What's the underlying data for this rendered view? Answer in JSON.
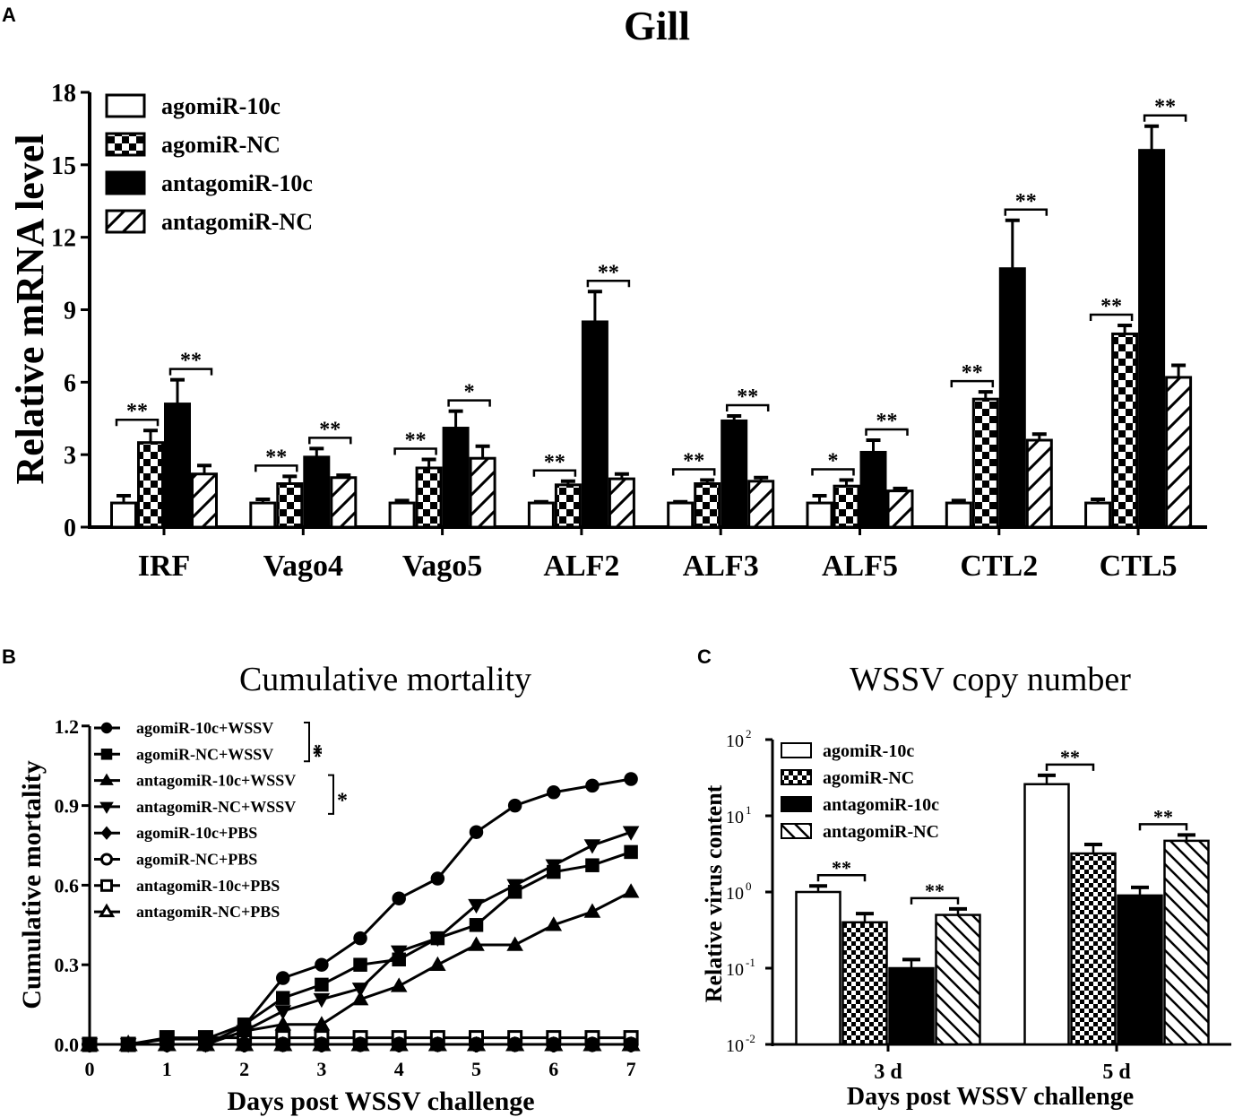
{
  "panel_letters": [
    "A",
    "B",
    "C"
  ],
  "chart_data": [
    {
      "type": "bar",
      "title": "Gill",
      "xlabel": "",
      "ylabel": "Relative mRNA level",
      "ylim": [
        0,
        18
      ],
      "yticks": [
        "0",
        "3",
        "6",
        "9",
        "12",
        "15",
        "18"
      ],
      "categories": [
        "IRF",
        "Vago4",
        "Vago5",
        "ALF2",
        "ALF3",
        "ALF5",
        "CTL2",
        "CTL5"
      ],
      "legend_position": "top-left",
      "series": [
        {
          "name": "agomiR-10c",
          "pattern": "white",
          "values": [
            1.0,
            1.0,
            1.0,
            1.0,
            1.0,
            1.0,
            1.0,
            1.0
          ],
          "errors": [
            0.3,
            0.15,
            0.1,
            0.05,
            0.05,
            0.3,
            0.1,
            0.15
          ]
        },
        {
          "name": "agomiR-NC",
          "pattern": "checker",
          "values": [
            3.5,
            1.8,
            2.45,
            1.75,
            1.8,
            1.7,
            5.3,
            8.0
          ],
          "errors": [
            0.5,
            0.3,
            0.35,
            0.15,
            0.15,
            0.25,
            0.3,
            0.35
          ]
        },
        {
          "name": "antagomiR-10c",
          "pattern": "black",
          "values": [
            5.1,
            2.9,
            4.1,
            8.5,
            4.4,
            3.1,
            10.7,
            15.6
          ],
          "errors": [
            1.0,
            0.35,
            0.7,
            1.25,
            0.2,
            0.5,
            2.0,
            1.0
          ]
        },
        {
          "name": "antagomiR-NC",
          "pattern": "hatch",
          "values": [
            2.2,
            2.05,
            2.85,
            2.0,
            1.9,
            1.5,
            3.6,
            6.2
          ],
          "errors": [
            0.35,
            0.1,
            0.5,
            0.2,
            0.15,
            0.1,
            0.25,
            0.5
          ]
        }
      ],
      "significance": [
        [
          "**",
          "**"
        ],
        [
          "**",
          "**"
        ],
        [
          "**",
          "*"
        ],
        [
          "**",
          "**"
        ],
        [
          "**",
          "**"
        ],
        [
          "*",
          "**"
        ],
        [
          "**",
          "**"
        ],
        [
          "**",
          "**"
        ]
      ]
    },
    {
      "type": "line",
      "title": "Cumulative mortality",
      "xlabel": "Days post WSSV challenge",
      "ylabel": "Cumulative mortality",
      "xlim": [
        0,
        7
      ],
      "ylim": [
        0,
        1.2
      ],
      "xticks": [
        "0",
        "1",
        "2",
        "3",
        "4",
        "5",
        "6",
        "7"
      ],
      "yticks": [
        "0.0",
        "0.3",
        "0.6",
        "0.9",
        "1.2"
      ],
      "x": [
        0,
        0.5,
        1,
        1.5,
        2,
        2.5,
        3,
        3.5,
        4,
        4.5,
        5,
        5.5,
        6,
        6.5,
        7
      ],
      "legend_position": "top-left",
      "series": [
        {
          "name": "agomiR-10c+WSSV",
          "marker": "circle-filled",
          "values": [
            0,
            0,
            0,
            0,
            0.07,
            0.25,
            0.3,
            0.4,
            0.55,
            0.625,
            0.8,
            0.9,
            0.95,
            0.975,
            1.0
          ]
        },
        {
          "name": "agomiR-NC+WSSV",
          "marker": "square-filled",
          "values": [
            0,
            0,
            0.02,
            0.02,
            0.075,
            0.175,
            0.225,
            0.3,
            0.32,
            0.4,
            0.45,
            0.575,
            0.65,
            0.675,
            0.725
          ]
        },
        {
          "name": "antagomiR-10c+WSSV",
          "marker": "triangle-up-filled",
          "values": [
            0,
            0,
            0,
            0,
            0.05,
            0.075,
            0.075,
            0.17,
            0.22,
            0.3,
            0.375,
            0.375,
            0.45,
            0.5,
            0.575
          ]
        },
        {
          "name": "antagomiR-NC+WSSV",
          "marker": "triangle-down-filled",
          "values": [
            0,
            0,
            0,
            0,
            0.05,
            0.125,
            0.17,
            0.21,
            0.35,
            0.4,
            0.525,
            0.6,
            0.675,
            0.75,
            0.8
          ]
        },
        {
          "name": "agomiR-10c+PBS",
          "marker": "diamond-filled",
          "values": [
            0,
            0,
            0,
            0,
            0,
            0,
            0,
            0,
            0,
            0,
            0,
            0,
            0,
            0,
            0
          ]
        },
        {
          "name": "agomiR-NC+PBS",
          "marker": "circle-open",
          "values": [
            0,
            0,
            0,
            0,
            0,
            0,
            0,
            0,
            0,
            0,
            0,
            0,
            0,
            0,
            0
          ]
        },
        {
          "name": "antagomiR-10c+PBS",
          "marker": "square-open",
          "values": [
            0,
            0,
            0.025,
            0.025,
            0.025,
            0.025,
            0.025,
            0.025,
            0.025,
            0.025,
            0.025,
            0.025,
            0.025,
            0.025,
            0.025
          ]
        },
        {
          "name": "antagomiR-NC+PBS",
          "marker": "triangle-up-open",
          "values": [
            0,
            0,
            0,
            0,
            0,
            0,
            0,
            0,
            0,
            0,
            0,
            0,
            0,
            0,
            0
          ]
        }
      ],
      "legend_significance": [
        {
          "pair": [
            0,
            1
          ],
          "label": "**"
        },
        {
          "pair": [
            2,
            3
          ],
          "label": "*"
        }
      ]
    },
    {
      "type": "bar",
      "title": "WSSV copy number",
      "xlabel": "Days post WSSV challenge",
      "ylabel": "Relative virus content",
      "yscale": "log",
      "ylim": [
        0.01,
        100
      ],
      "yticks": [
        {
          "base": "10",
          "exp": "-2"
        },
        {
          "base": "10",
          "exp": "-1"
        },
        {
          "base": "10",
          "exp": "0"
        },
        {
          "base": "10",
          "exp": "1"
        },
        {
          "base": "10",
          "exp": "2"
        }
      ],
      "categories": [
        "3 d",
        "5 d"
      ],
      "legend_position": "top-left",
      "series": [
        {
          "name": "agomiR-10c",
          "pattern": "white",
          "values": [
            1.0,
            26
          ],
          "errors": [
            0.2,
            8
          ]
        },
        {
          "name": "agomiR-NC",
          "pattern": "checker",
          "values": [
            0.4,
            3.2
          ],
          "errors": [
            0.12,
            1.0
          ]
        },
        {
          "name": "antagomiR-10c",
          "pattern": "black",
          "values": [
            0.1,
            0.9
          ],
          "errors": [
            0.03,
            0.25
          ]
        },
        {
          "name": "antagomiR-NC",
          "pattern": "hatch",
          "values": [
            0.5,
            4.7
          ],
          "errors": [
            0.1,
            0.9
          ]
        }
      ],
      "significance": [
        [
          "**",
          "**"
        ],
        [
          "**",
          "**"
        ]
      ]
    }
  ]
}
